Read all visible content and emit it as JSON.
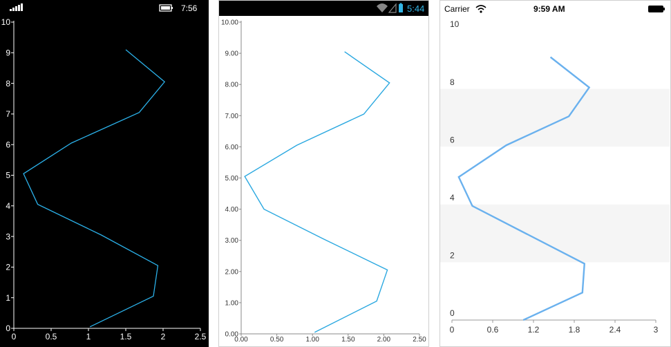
{
  "phones": {
    "windows": {
      "status": {
        "time": "7:56",
        "icons": [
          "signal-icon",
          "battery-icon"
        ]
      },
      "colors": {
        "background": "#000000",
        "line": "#2bb0e8",
        "axis": "#ffffff",
        "text": "#ffffff"
      }
    },
    "android": {
      "status": {
        "time": "5:44",
        "icons": [
          "wifi-icon",
          "no-signal-icon",
          "battery-icon"
        ]
      },
      "colors": {
        "background": "#ffffff",
        "line": "#2aa8e0",
        "axis": "#888888",
        "text": "#333333",
        "status_accent": "#33b5e5"
      }
    },
    "ios": {
      "status": {
        "carrier": "Carrier",
        "time": "9:59 AM",
        "icons": [
          "wifi-icon",
          "battery-icon"
        ]
      },
      "colors": {
        "background": "#ffffff",
        "line": "#6ab1ee",
        "axis": "#999999",
        "text": "#333333",
        "band": "#f5f5f5"
      }
    }
  },
  "chart_data": [
    {
      "type": "line",
      "platform": "windows",
      "x": [
        1.02,
        1.87,
        1.93,
        1.17,
        0.32,
        0.13,
        0.77,
        1.68,
        2.02,
        1.5
      ],
      "y": [
        0.05,
        1.05,
        2.05,
        3.05,
        4.05,
        5.05,
        6.05,
        7.05,
        8.05,
        9.1
      ],
      "xlim": [
        0,
        2.5
      ],
      "ylim": [
        0,
        10
      ],
      "x_ticks": [
        "0",
        "0.5",
        "1",
        "1.5",
        "2",
        "2.5"
      ],
      "y_ticks": [
        "0",
        "1",
        "2",
        "3",
        "4",
        "5",
        "6",
        "7",
        "8",
        "9",
        "10"
      ],
      "grid": false
    },
    {
      "type": "line",
      "platform": "android",
      "x": [
        1.03,
        1.9,
        2.05,
        1.15,
        0.32,
        0.05,
        0.78,
        1.72,
        2.08,
        1.45
      ],
      "y": [
        0.05,
        1.05,
        2.05,
        3.05,
        4.0,
        5.05,
        6.05,
        7.05,
        8.05,
        9.05
      ],
      "xlim": [
        0,
        2.5
      ],
      "ylim": [
        0,
        10
      ],
      "x_ticks": [
        "0.00",
        "0.50",
        "1.00",
        "1.50",
        "2.00",
        "2.50"
      ],
      "y_ticks": [
        "0.00",
        "1.00",
        "2.00",
        "3.00",
        "4.00",
        "5.00",
        "6.00",
        "7.00",
        "8.00",
        "9.00",
        "10.00"
      ],
      "grid": false
    },
    {
      "type": "line",
      "platform": "ios",
      "x": [
        1.05,
        1.92,
        1.95,
        0.3,
        0.1,
        0.8,
        1.72,
        2.02,
        1.45
      ],
      "y": [
        0,
        0.95,
        1.95,
        3.95,
        4.95,
        6.05,
        7.05,
        8.05,
        9.1
      ],
      "xlim": [
        0,
        3
      ],
      "ylim": [
        0,
        10
      ],
      "x_ticks": [
        "0",
        "0.6",
        "1.2",
        "1.8",
        "2.4",
        "3"
      ],
      "y_ticks": [
        "0",
        "2",
        "4",
        "6",
        "8",
        "10"
      ],
      "bands": [
        [
          2,
          4
        ],
        [
          6,
          8
        ]
      ],
      "grid": false
    }
  ]
}
